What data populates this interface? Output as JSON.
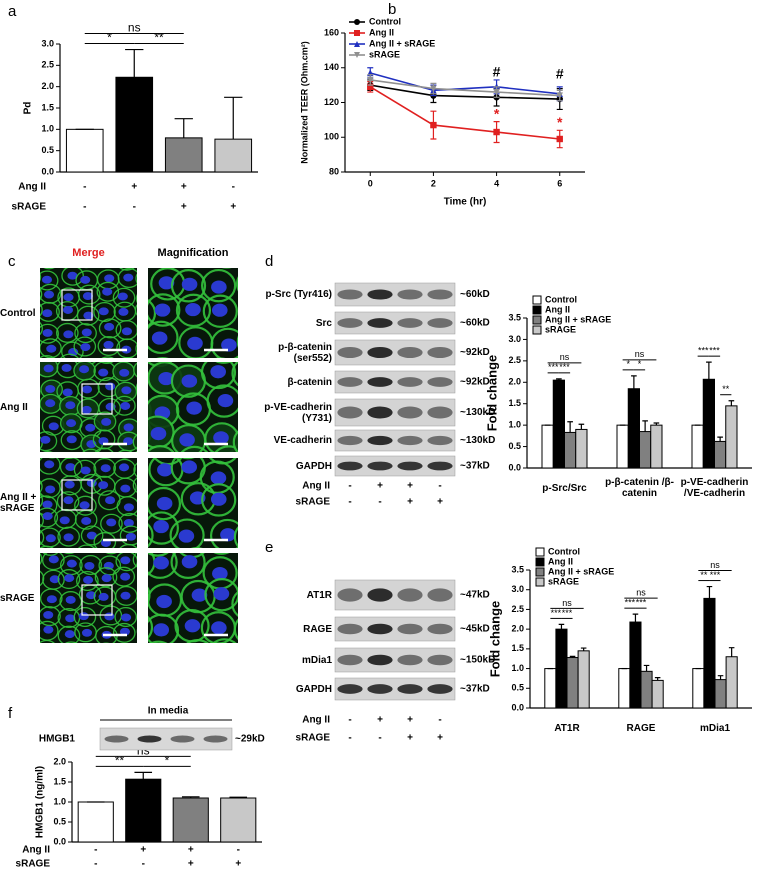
{
  "panel_labels": [
    "a",
    "b",
    "c",
    "d",
    "e",
    "f"
  ],
  "chart_data": [
    {
      "type": "bar",
      "ylabel": "Pd",
      "categories": [
        null,
        null,
        null,
        null
      ],
      "values": [
        1.0,
        2.22,
        0.8,
        0.77
      ],
      "errors": [
        0,
        0.65,
        0.45,
        0.98
      ],
      "colors": [
        "#ffffff",
        "#000000",
        "#808080",
        "#c8c8c8"
      ],
      "ylim": [
        0,
        3
      ],
      "yticks": [
        {
          "value": 0,
          "label": "0.0"
        },
        {
          "value": 0.5,
          "label": "0.5"
        },
        {
          "value": 1,
          "label": "1.0"
        },
        {
          "value": 1.5,
          "label": "1.5"
        },
        {
          "value": 2,
          "label": "2.0"
        },
        {
          "value": 2.5,
          "label": "2.5"
        },
        {
          "value": 3,
          "label": "3.0"
        }
      ],
      "conditions": [
        {
          "name": "Ang II",
          "values": [
            "-",
            "+",
            "+",
            "-"
          ]
        },
        {
          "name": "sRAGE",
          "values": [
            "-",
            "-",
            "+",
            "+"
          ]
        }
      ],
      "significance": [
        {
          "text": "ns",
          "from": 0,
          "to": 2
        },
        {
          "text": "*",
          "from": 0,
          "to": 1
        },
        {
          "text": "**",
          "from": 1,
          "to": 2
        }
      ]
    },
    {
      "type": "line",
      "xlabel": "Time (hr)",
      "ylabel": "Normalized TEER (Ohm.cm²)",
      "x": [
        0,
        2,
        4,
        6
      ],
      "xlim": [
        -0.8,
        6.8
      ],
      "xticks": [
        0,
        2,
        4,
        6
      ],
      "ylim": [
        80,
        160
      ],
      "yticks": [
        80,
        100,
        120,
        140,
        160
      ],
      "legend": "upper left",
      "series": [
        {
          "name": "Control",
          "color": "#000000",
          "marker": "circle",
          "values": [
            130,
            124,
            123,
            122
          ],
          "errors": [
            3,
            4,
            5,
            6
          ]
        },
        {
          "name": "Ang II",
          "color": "#e02020",
          "marker": "square",
          "values": [
            129,
            107,
            103,
            99
          ],
          "errors": [
            3,
            8,
            6,
            5
          ]
        },
        {
          "name": "Ang II + sRAGE",
          "color": "#2030c0",
          "marker": "triangle",
          "values": [
            137,
            127,
            129,
            125
          ],
          "errors": [
            3,
            3,
            4,
            4
          ]
        },
        {
          "name": "sRAGE",
          "color": "#909090",
          "marker": "triangle-down",
          "values": [
            133,
            128,
            126,
            124
          ],
          "errors": [
            3,
            3,
            3,
            3
          ]
        }
      ],
      "annotations": [
        {
          "text": "#",
          "x": 4,
          "y": 137,
          "color": "#000000"
        },
        {
          "text": "#",
          "x": 6,
          "y": 136,
          "color": "#000000"
        },
        {
          "text": "*",
          "x": 4,
          "y": 113,
          "color": "#e02020"
        },
        {
          "text": "*",
          "x": 6,
          "y": 108,
          "color": "#e02020"
        }
      ]
    },
    {
      "type": "bar",
      "ylabel": "Fold change",
      "legend": "upper left",
      "categories": [
        "p-Src/Src",
        "p-β-catenin /β-catenin",
        "p-VE-cadherin /VE-cadherin"
      ],
      "ylim": [
        0,
        3.5
      ],
      "yticks": [
        {
          "value": 0,
          "label": "0.0"
        },
        {
          "value": 0.5,
          "label": "0.5"
        },
        {
          "value": 1,
          "label": "1.0"
        },
        {
          "value": 1.5,
          "label": "1.5"
        },
        {
          "value": 2,
          "label": "2.0"
        },
        {
          "value": 2.5,
          "label": "2.5"
        },
        {
          "value": 3,
          "label": "3.0"
        },
        {
          "value": 3.5,
          "label": "3.5"
        }
      ],
      "series": [
        {
          "name": "Control",
          "color": "#ffffff",
          "values": [
            1,
            1,
            1
          ],
          "errors": [
            0,
            0,
            0
          ]
        },
        {
          "name": "Ang II",
          "color": "#000000",
          "values": [
            2.05,
            1.85,
            2.07
          ],
          "errors": [
            0.03,
            0.3,
            0.4
          ]
        },
        {
          "name": "Ang II + sRAGE",
          "color": "#808080",
          "values": [
            0.83,
            0.85,
            0.62
          ],
          "errors": [
            0.25,
            0.25,
            0.1
          ]
        },
        {
          "name": "sRAGE",
          "color": "#c8c8c8",
          "values": [
            0.9,
            1.0,
            1.45
          ],
          "errors": [
            0.12,
            0.05,
            0.12
          ]
        }
      ],
      "significance": [
        {
          "text": "ns",
          "category": 0,
          "from": 0,
          "to": 3
        },
        {
          "text": "***",
          "category": 0,
          "from": 0,
          "to": 1
        },
        {
          "text": "***",
          "category": 0,
          "from": 1,
          "to": 2
        },
        {
          "text": "ns",
          "category": 1,
          "from": 0,
          "to": 3
        },
        {
          "text": "*",
          "category": 1,
          "from": 0,
          "to": 1
        },
        {
          "text": "*",
          "category": 1,
          "from": 1,
          "to": 2
        },
        {
          "text": "**",
          "category": 2,
          "from": 2,
          "to": 3
        },
        {
          "text": "***",
          "category": 2,
          "from": 0,
          "to": 1
        },
        {
          "text": "***",
          "category": 2,
          "from": 1,
          "to": 2
        }
      ]
    },
    {
      "type": "bar",
      "ylabel": "Fold change",
      "legend": "upper left",
      "categories": [
        "AT1R",
        "RAGE",
        "mDia1"
      ],
      "ylim": [
        0,
        3.5
      ],
      "yticks": [
        {
          "value": 0,
          "label": "0.0"
        },
        {
          "value": 0.5,
          "label": "0.5"
        },
        {
          "value": 1,
          "label": "1.0"
        },
        {
          "value": 1.5,
          "label": "1.5"
        },
        {
          "value": 2,
          "label": "2.0"
        },
        {
          "value": 2.5,
          "label": "2.5"
        },
        {
          "value": 3,
          "label": "3.0"
        },
        {
          "value": 3.5,
          "label": "3.5"
        }
      ],
      "series": [
        {
          "name": "Control",
          "color": "#ffffff",
          "values": [
            1,
            1,
            1
          ],
          "errors": [
            0,
            0,
            0
          ]
        },
        {
          "name": "Ang II",
          "color": "#000000",
          "values": [
            2.0,
            2.18,
            2.78
          ],
          "errors": [
            0.12,
            0.2,
            0.3
          ]
        },
        {
          "name": "Ang II + sRAGE",
          "color": "#808080",
          "values": [
            1.28,
            0.93,
            0.72
          ],
          "errors": [
            0.03,
            0.15,
            0.1
          ]
        },
        {
          "name": "sRAGE",
          "color": "#c8c8c8",
          "values": [
            1.45,
            0.7,
            1.3
          ],
          "errors": [
            0.07,
            0.07,
            0.23
          ]
        }
      ],
      "significance": [
        {
          "text": "ns",
          "category": 0,
          "from": 0,
          "to": 3
        },
        {
          "text": "***",
          "category": 0,
          "from": 0,
          "to": 1
        },
        {
          "text": "***",
          "category": 0,
          "from": 1,
          "to": 2
        },
        {
          "text": "ns",
          "category": 1,
          "from": 0,
          "to": 3
        },
        {
          "text": "***",
          "category": 1,
          "from": 0,
          "to": 1
        },
        {
          "text": "***",
          "category": 1,
          "from": 1,
          "to": 2
        },
        {
          "text": "ns",
          "category": 2,
          "from": 0,
          "to": 3
        },
        {
          "text": "**",
          "category": 2,
          "from": 0,
          "to": 1
        },
        {
          "text": "***",
          "category": 2,
          "from": 1,
          "to": 2
        }
      ]
    },
    {
      "type": "bar",
      "ylabel": "HMGB1 (ng/ml)",
      "categories": [
        null,
        null,
        null,
        null
      ],
      "values": [
        1.0,
        1.57,
        1.1,
        1.1
      ],
      "errors": [
        0,
        0.17,
        0.03,
        0.02
      ],
      "colors": [
        "#ffffff",
        "#000000",
        "#808080",
        "#c8c8c8"
      ],
      "ylim": [
        0,
        2
      ],
      "yticks": [
        {
          "value": 0,
          "label": "0.0"
        },
        {
          "value": 0.5,
          "label": "0.5"
        },
        {
          "value": 1,
          "label": "1.0"
        },
        {
          "value": 1.5,
          "label": "1.5"
        },
        {
          "value": 2,
          "label": "2.0"
        }
      ],
      "conditions": [
        {
          "name": "Ang II",
          "values": [
            "-",
            "+",
            "+",
            "-"
          ]
        },
        {
          "name": "sRAGE",
          "values": [
            "-",
            "-",
            "+",
            "+"
          ]
        }
      ],
      "significance": [
        {
          "text": "ns",
          "from": 0,
          "to": 2
        },
        {
          "text": "**",
          "from": 0,
          "to": 1
        },
        {
          "text": "*",
          "from": 1,
          "to": 2
        }
      ]
    }
  ],
  "microscopy": {
    "columns": [
      "Merge",
      "Magnification"
    ],
    "rows": [
      "Control",
      "Ang II",
      "Ang II + sRAGE",
      "sRAGE"
    ]
  },
  "blots_d": {
    "rows": [
      {
        "label": "p-Src (Tyr416)",
        "size": "~60kD"
      },
      {
        "label": "Src",
        "size": "~60kD"
      },
      {
        "label": "p-β-catenin (ser552)",
        "size": "~92kD"
      },
      {
        "label": "β-catenin",
        "size": "~92kD"
      },
      {
        "label": "p-VE-cadherin (Y731)",
        "size": "~130kD"
      },
      {
        "label": "VE-cadherin",
        "size": "~130kD"
      },
      {
        "label": "GAPDH",
        "size": "~37kD"
      }
    ],
    "conditions": [
      {
        "name": "Ang II",
        "values": [
          "-",
          "+",
          "+",
          "-"
        ]
      },
      {
        "name": "sRAGE",
        "values": [
          "-",
          "-",
          "+",
          "+"
        ]
      }
    ]
  },
  "blots_e": {
    "rows": [
      {
        "label": "AT1R",
        "size": "~47kD"
      },
      {
        "label": "RAGE",
        "size": "~45kD"
      },
      {
        "label": "mDia1",
        "size": "~150kD"
      },
      {
        "label": "GAPDH",
        "size": "~37kD"
      }
    ],
    "conditions": [
      {
        "name": "Ang II",
        "values": [
          "-",
          "+",
          "+",
          "-"
        ]
      },
      {
        "name": "sRAGE",
        "values": [
          "-",
          "-",
          "+",
          "+"
        ]
      }
    ]
  },
  "blot_f": {
    "title": "In media",
    "label": "HMGB1",
    "size": "~29kD"
  }
}
